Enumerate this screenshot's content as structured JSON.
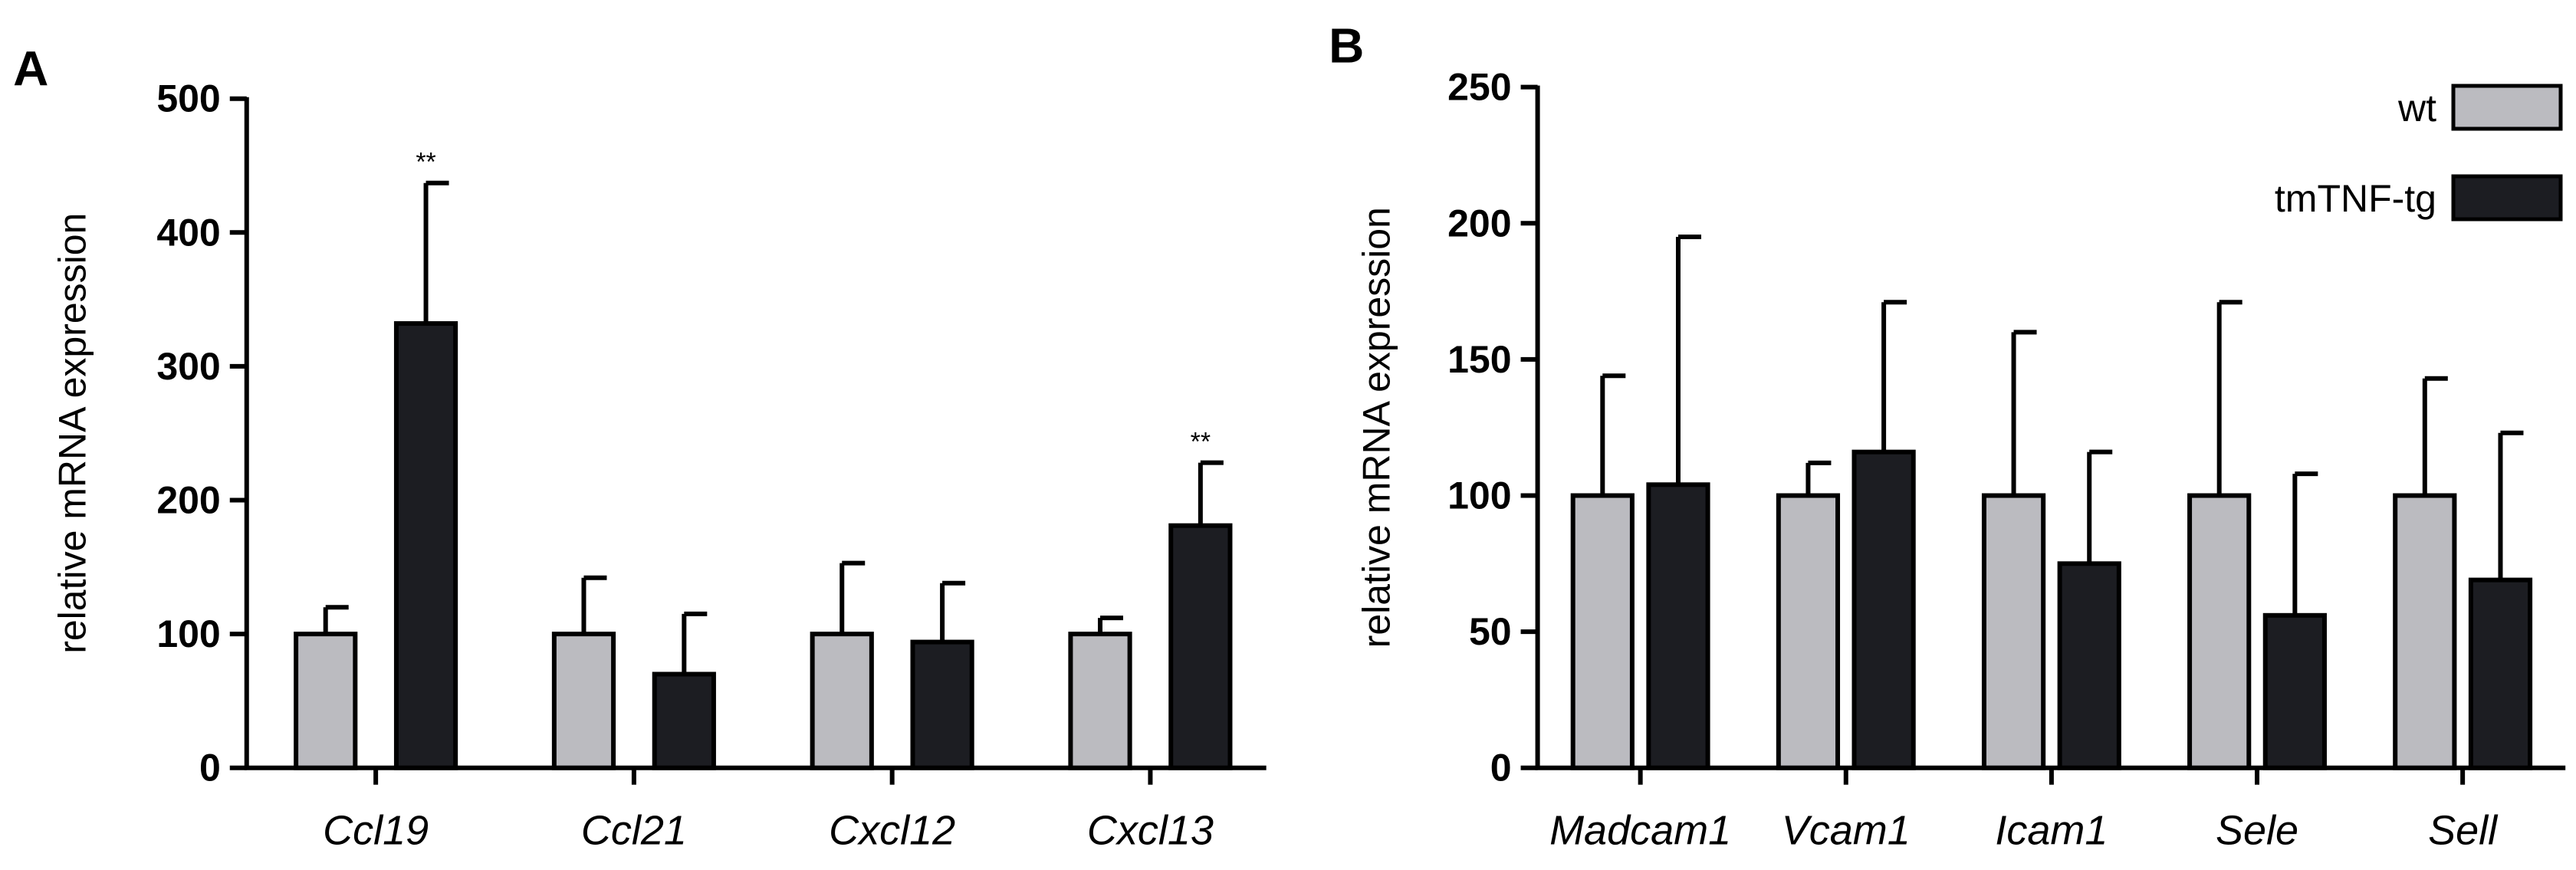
{
  "colors": {
    "wt": "#bbbbc0",
    "tmTNF-tg": "#1c1d22",
    "axis": "#000000"
  },
  "legend": [
    {
      "name": "wt",
      "color_key": "wt"
    },
    {
      "name": "tmTNF-tg",
      "color_key": "tmTNF-tg"
    }
  ],
  "chart_data": [
    {
      "panel": "A",
      "type": "bar",
      "ylabel": "relative mRNA expression",
      "ylim": [
        0,
        500
      ],
      "yticks": [
        0,
        100,
        200,
        300,
        400,
        500
      ],
      "categories": [
        "Ccl19",
        "Ccl21",
        "Cxcl12",
        "Cxcl13"
      ],
      "series": [
        {
          "name": "wt",
          "values": [
            100,
            100,
            100,
            100
          ],
          "error": [
            20,
            42,
            53,
            12
          ]
        },
        {
          "name": "tmTNF-tg",
          "values": [
            332,
            70,
            94,
            181
          ],
          "error": [
            105,
            45,
            44,
            47
          ]
        }
      ],
      "annotations": [
        {
          "category": "Ccl19",
          "series": "tmTNF-tg",
          "text": "**"
        },
        {
          "category": "Cxcl13",
          "series": "tmTNF-tg",
          "text": "**"
        }
      ],
      "grid": false
    },
    {
      "panel": "B",
      "type": "bar",
      "ylabel": "relative mRNA expression",
      "ylim": [
        0,
        250
      ],
      "yticks": [
        0,
        50,
        100,
        150,
        200,
        250
      ],
      "categories": [
        "Madcam1",
        "Vcam1",
        "Icam1",
        "Sele",
        "Sell"
      ],
      "series": [
        {
          "name": "wt",
          "values": [
            100,
            100,
            100,
            100,
            100
          ],
          "error": [
            44,
            12,
            60,
            71,
            43
          ]
        },
        {
          "name": "tmTNF-tg",
          "values": [
            104,
            116,
            75,
            56,
            69
          ],
          "error": [
            91,
            55,
            41,
            52,
            54
          ]
        }
      ],
      "annotations": [],
      "legend_position": "top-right",
      "grid": false
    }
  ]
}
